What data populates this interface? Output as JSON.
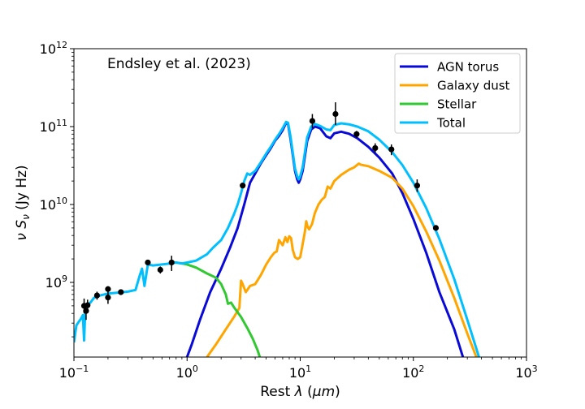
{
  "chart_data": {
    "type": "line",
    "title": "",
    "annotation": "Endsley et al. (2023)",
    "xlabel": "Rest λ (μm)",
    "ylabel": "ν S_ν (Jy Hz)",
    "xscale": "log",
    "yscale": "log",
    "xlim": [
      0.1,
      1000
    ],
    "ylim": [
      110000000.0,
      1000000000000.0
    ],
    "x_ticks": [
      {
        "value": 0.1,
        "base": "10",
        "exp": "−1"
      },
      {
        "value": 1,
        "base": "10",
        "exp": "0"
      },
      {
        "value": 10,
        "base": "10",
        "exp": "1"
      },
      {
        "value": 100,
        "base": "10",
        "exp": "2"
      },
      {
        "value": 1000,
        "base": "10",
        "exp": "3"
      }
    ],
    "y_ticks": [
      {
        "value": 1000000000.0,
        "base": "10",
        "exp": "9"
      },
      {
        "value": 10000000000.0,
        "base": "10",
        "exp": "10"
      },
      {
        "value": 100000000000.0,
        "base": "10",
        "exp": "11"
      },
      {
        "value": 1000000000000.0,
        "base": "10",
        "exp": "12"
      }
    ],
    "legend": {
      "position": "top-right",
      "entries": [
        "AGN torus",
        "Galaxy dust",
        "Stellar",
        "Total"
      ]
    },
    "series": [
      {
        "name": "AGN torus",
        "color": "#0a0ad8",
        "x": [
          0.95,
          1.1,
          1.3,
          1.6,
          2.0,
          2.4,
          2.8,
          3.2,
          3.6,
          4.0,
          4.5,
          5.0,
          5.5,
          6.0,
          6.5,
          7.0,
          7.5,
          7.8,
          8.2,
          8.6,
          9.0,
          9.4,
          9.7,
          10.0,
          10.5,
          11.0,
          11.5,
          12.5,
          13.5,
          15,
          17,
          18.5,
          20,
          23,
          27,
          32,
          40,
          50,
          65,
          80,
          100,
          130,
          170,
          230,
          280
        ],
        "y": [
          90000000.0,
          160000000.0,
          330000000.0,
          750000000.0,
          1500000000.0,
          2800000000.0,
          5000000000.0,
          10000000000.0,
          19000000000.0,
          25000000000.0,
          34000000000.0,
          43000000000.0,
          53000000000.0,
          66000000000.0,
          76000000000.0,
          90000000000.0,
          112000000000.0,
          108000000000.0,
          70000000000.0,
          43000000000.0,
          27000000000.0,
          21000000000.0,
          19000000000.0,
          21000000000.0,
          27000000000.0,
          42000000000.0,
          65000000000.0,
          92000000000.0,
          100000000000.0,
          95000000000.0,
          75000000000.0,
          71000000000.0,
          82000000000.0,
          86000000000.0,
          81000000000.0,
          71000000000.0,
          55000000000.0,
          40000000000.0,
          25000000000.0,
          14000000000.0,
          6500000000.0,
          2400000000.0,
          750000000.0,
          250000000.0,
          100000000.0
        ]
      },
      {
        "name": "Galaxy dust",
        "color": "#ffa500",
        "x": [
          1.5,
          1.8,
          2.2,
          2.6,
          2.9,
          3.0,
          3.1,
          3.3,
          3.6,
          4.0,
          4.5,
          5.0,
          5.5,
          5.9,
          6.2,
          6.5,
          7.0,
          7.4,
          7.7,
          8.0,
          8.3,
          8.6,
          9.0,
          9.5,
          10.0,
          10.5,
          11.0,
          11.3,
          11.6,
          12.0,
          12.7,
          13.5,
          14.5,
          15.5,
          16.5,
          17.5,
          18.5,
          20,
          23,
          27,
          30,
          33,
          34,
          40,
          50,
          65,
          80,
          100,
          130,
          170,
          230,
          300,
          380
        ],
        "y": [
          110000000.0,
          160000000.0,
          250000000.0,
          360000000.0,
          470000000.0,
          1050000000.0,
          950000000.0,
          750000000.0,
          900000000.0,
          950000000.0,
          1250000000.0,
          1700000000.0,
          2100000000.0,
          2400000000.0,
          2500000000.0,
          3500000000.0,
          3000000000.0,
          3800000000.0,
          3300000000.0,
          3900000000.0,
          3700000000.0,
          2600000000.0,
          2100000000.0,
          2000000000.0,
          2100000000.0,
          3100000000.0,
          4500000000.0,
          6100000000.0,
          5200000000.0,
          4800000000.0,
          5600000000.0,
          7800000000.0,
          10000000000.0,
          11500000000.0,
          12500000000.0,
          17000000000.0,
          16000000000.0,
          20000000000.0,
          24000000000.0,
          28000000000.0,
          30000000000.0,
          33500000000.0,
          32500000000.0,
          31000000000.0,
          27000000000.0,
          22000000000.0,
          16000000000.0,
          9500000000.0,
          4500000000.0,
          1900000000.0,
          630000000.0,
          220000000.0,
          90000000.0
        ]
      },
      {
        "name": "Stellar",
        "color": "#32c832",
        "x": [
          0.7,
          0.9,
          1.0,
          1.2,
          1.5,
          1.8,
          2.0,
          2.2,
          2.3,
          2.45,
          2.6,
          3.0,
          3.4,
          3.8,
          4.2,
          4.6
        ],
        "y": [
          1850000000.0,
          1750000000.0,
          1700000000.0,
          1550000000.0,
          1300000000.0,
          1150000000.0,
          950000000.0,
          700000000.0,
          530000000.0,
          550000000.0,
          480000000.0,
          360000000.0,
          260000000.0,
          190000000.0,
          135000000.0,
          90000000.0
        ]
      },
      {
        "name": "Total",
        "color": "#00bfff",
        "x": [
          0.1,
          0.105,
          0.11,
          0.115,
          0.12,
          0.123,
          0.126,
          0.13,
          0.135,
          0.14,
          0.15,
          0.17,
          0.2,
          0.25,
          0.3,
          0.35,
          0.38,
          0.4,
          0.42,
          0.45,
          0.5,
          0.6,
          0.7,
          0.8,
          0.9,
          1.0,
          1.2,
          1.5,
          1.7,
          2.0,
          2.3,
          2.6,
          2.8,
          3.0,
          3.2,
          3.4,
          3.6,
          4.0,
          4.5,
          5.0,
          5.5,
          6.0,
          6.5,
          7.0,
          7.5,
          7.8,
          8.2,
          8.6,
          9.0,
          9.4,
          9.7,
          10.0,
          10.5,
          11.0,
          11.5,
          12.5,
          13.5,
          15,
          17,
          18.5,
          20,
          23,
          27,
          32,
          40,
          50,
          65,
          80,
          100,
          130,
          170,
          230,
          300,
          380,
          410
        ],
        "y": [
          170000000.0,
          280000000.0,
          310000000.0,
          340000000.0,
          380000000.0,
          180000000.0,
          450000000.0,
          480000000.0,
          530000000.0,
          550000000.0,
          630000000.0,
          680000000.0,
          720000000.0,
          740000000.0,
          760000000.0,
          800000000.0,
          1200000000.0,
          1500000000.0,
          900000000.0,
          1700000000.0,
          1650000000.0,
          1700000000.0,
          1750000000.0,
          1800000000.0,
          1750000000.0,
          1800000000.0,
          1900000000.0,
          2300000000.0,
          2800000000.0,
          3500000000.0,
          5000000000.0,
          7500000000.0,
          10000000000.0,
          14000000000.0,
          20000000000.0,
          25000000000.0,
          24000000000.0,
          27000000000.0,
          35000000000.0,
          45000000000.0,
          55000000000.0,
          68000000000.0,
          80000000000.0,
          95000000000.0,
          115000000000.0,
          112000000000.0,
          75000000000.0,
          46000000000.0,
          29000000000.0,
          23000000000.0,
          21000000000.0,
          23000000000.0,
          30000000000.0,
          47000000000.0,
          72000000000.0,
          100000000000.0,
          108000000000.0,
          102000000000.0,
          92000000000.0,
          90000000000.0,
          105000000000.0,
          110000000000.0,
          107000000000.0,
          100000000000.0,
          87000000000.0,
          68000000000.0,
          47000000000.0,
          32000000000.0,
          19000000000.0,
          9000000000.0,
          3600000000.0,
          1100000000.0,
          330000000.0,
          110000000.0,
          80000000.0
        ]
      }
    ],
    "observations": [
      {
        "x": 0.123,
        "y": 500000000.0,
        "ylo": 400000000.0,
        "yhi": 620000000.0
      },
      {
        "x": 0.128,
        "y": 430000000.0,
        "ylo": 330000000.0,
        "yhi": 530000000.0
      },
      {
        "x": 0.132,
        "y": 510000000.0,
        "ylo": 420000000.0,
        "yhi": 600000000.0
      },
      {
        "x": 0.16,
        "y": 680000000.0,
        "ylo": 600000000.0,
        "yhi": 760000000.0
      },
      {
        "x": 0.2,
        "y": 820000000.0,
        "ylo": 750000000.0,
        "yhi": 890000000.0
      },
      {
        "x": 0.2,
        "y": 640000000.0,
        "ylo": 530000000.0,
        "yhi": 750000000.0
      },
      {
        "x": 0.26,
        "y": 750000000.0,
        "ylo": 690000000.0,
        "yhi": 810000000.0
      },
      {
        "x": 0.45,
        "y": 1800000000.0,
        "ylo": 1700000000.0,
        "yhi": 1900000000.0
      },
      {
        "x": 0.58,
        "y": 1450000000.0,
        "ylo": 1300000000.0,
        "yhi": 1600000000.0
      },
      {
        "x": 0.73,
        "y": 1800000000.0,
        "ylo": 1400000000.0,
        "yhi": 2200000000.0
      },
      {
        "x": 3.1,
        "y": 17500000000.0,
        "ylo": 16500000000.0,
        "yhi": 18500000000.0
      },
      {
        "x": 12.8,
        "y": 118000000000.0,
        "ylo": 95000000000.0,
        "yhi": 145000000000.0
      },
      {
        "x": 20.5,
        "y": 145000000000.0,
        "ylo": 105000000000.0,
        "yhi": 205000000000.0
      },
      {
        "x": 31.5,
        "y": 80000000000.0,
        "ylo": 72000000000.0,
        "yhi": 88000000000.0
      },
      {
        "x": 46,
        "y": 53000000000.0,
        "ylo": 46000000000.0,
        "yhi": 61000000000.0
      },
      {
        "x": 64,
        "y": 51000000000.0,
        "ylo": 43000000000.0,
        "yhi": 59000000000.0
      },
      {
        "x": 108,
        "y": 17500000000.0,
        "ylo": 14500000000.0,
        "yhi": 21000000000.0
      },
      {
        "x": 158,
        "y": 5000000000.0,
        "ylo": 4800000000.0,
        "yhi": 5200000000.0
      }
    ]
  }
}
